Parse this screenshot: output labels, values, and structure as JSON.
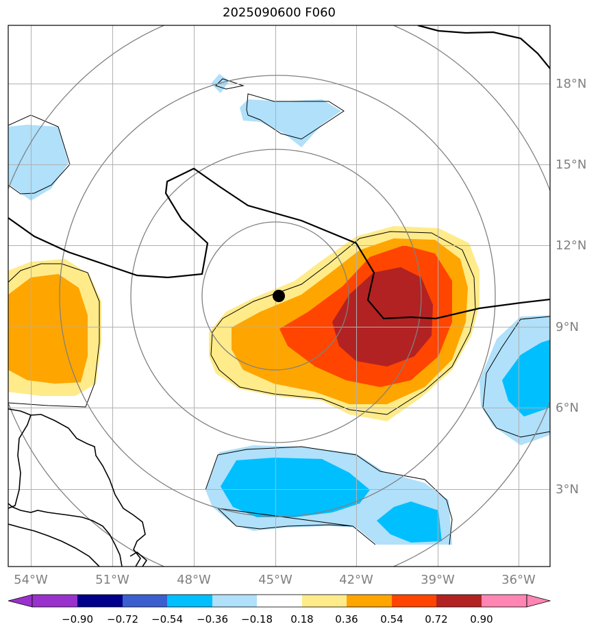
{
  "title": "2025090600 F060",
  "map": {
    "lon_range": [
      -55,
      -35
    ],
    "lat_range": [
      0,
      20
    ],
    "lon_ticks": [
      {
        "value": -54,
        "label": "54°W"
      },
      {
        "value": -51,
        "label": "51°W"
      },
      {
        "value": -48,
        "label": "48°W"
      },
      {
        "value": -45,
        "label": "45°W"
      },
      {
        "value": -42,
        "label": "42°W"
      },
      {
        "value": -39,
        "label": "39°W"
      },
      {
        "value": -36,
        "label": "36°W"
      }
    ],
    "lat_ticks": [
      {
        "value": 18,
        "label": "18°N"
      },
      {
        "value": 15,
        "label": "15°N"
      },
      {
        "value": 12,
        "label": "12°N"
      },
      {
        "value": 9,
        "label": "9°N"
      },
      {
        "value": 6,
        "label": "6°N"
      },
      {
        "value": 3,
        "label": "3°N"
      }
    ],
    "center_marker": {
      "lon": -44.9,
      "lat": 10.1
    },
    "range_rings_deg": [
      2.7,
      5.4,
      8.1,
      10.8
    ],
    "colors": {
      "grid": "#b0b0b0",
      "ring": "#808080",
      "tick_label": "#808080",
      "contour": "#000000",
      "coast": "#000000"
    }
  },
  "colorbar": {
    "levels": [
      "−0.90",
      "−0.72",
      "−0.54",
      "−0.36",
      "−0.18",
      "0.18",
      "0.36",
      "0.54",
      "0.72",
      "0.90"
    ],
    "colors": [
      "#9932cc",
      "#00008b",
      "#3b5fce",
      "#00bfff",
      "#b0e0fa",
      "#ffffff",
      "#ffeb8a",
      "#ffa500",
      "#ff4500",
      "#b22222",
      "#ff85b3"
    ]
  }
}
